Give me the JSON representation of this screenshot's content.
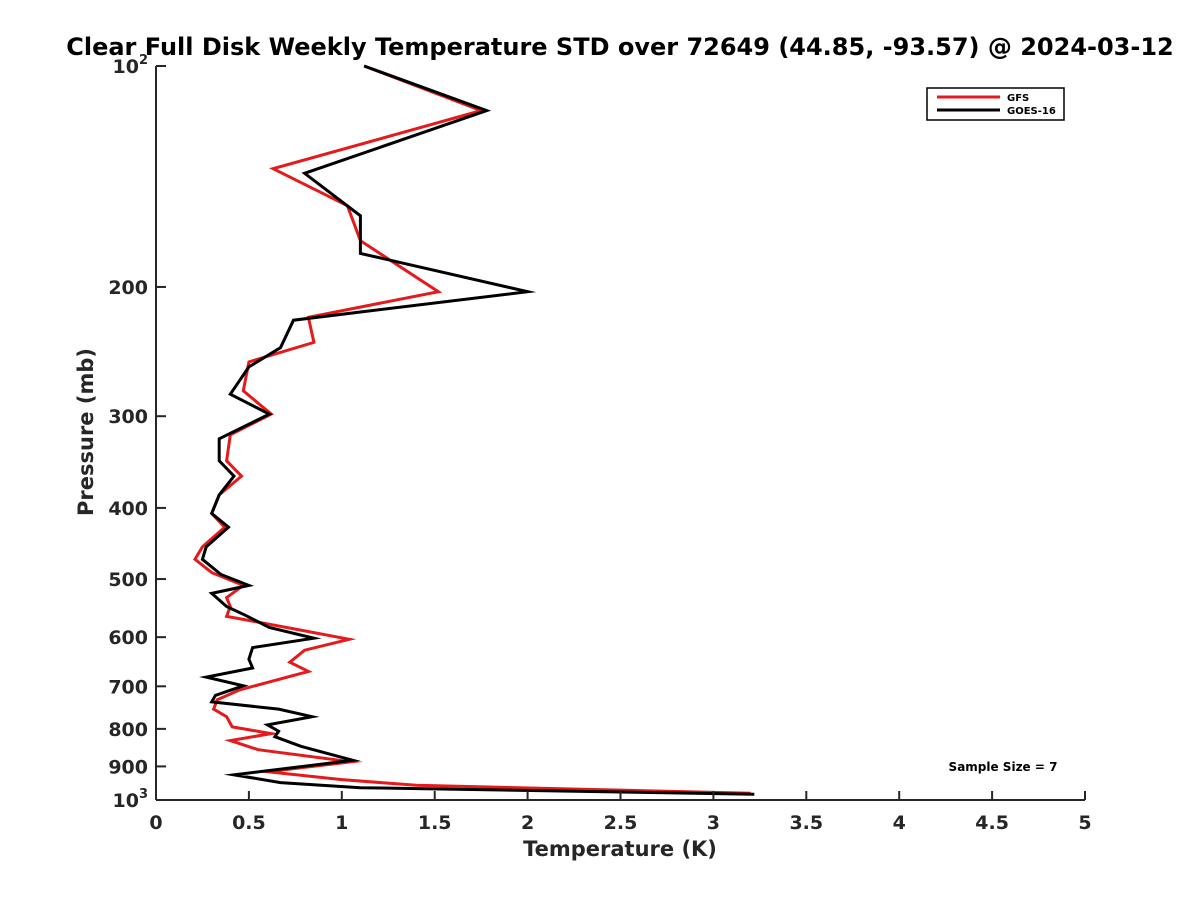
{
  "chart_data": {
    "type": "line",
    "title": "Clear Full Disk Weekly Temperature STD over 72649 (44.85, -93.57) @ 2024-03-12",
    "xlabel": "Temperature (K)",
    "ylabel": "Pressure (mb)",
    "xlim": [
      0,
      5
    ],
    "ylim": [
      100,
      1000
    ],
    "y_scale": "log",
    "y_reversed": true,
    "x_ticks": [
      "0",
      "0.5",
      "1",
      "1.5",
      "2",
      "2.5",
      "3",
      "3.5",
      "4",
      "4.5",
      "5"
    ],
    "y_ticks": [
      {
        "value": 100,
        "base": "10",
        "exp": "2"
      },
      {
        "value": 200,
        "label": "200"
      },
      {
        "value": 300,
        "label": "300"
      },
      {
        "value": 400,
        "label": "400"
      },
      {
        "value": 500,
        "label": "500"
      },
      {
        "value": 600,
        "label": "600"
      },
      {
        "value": 700,
        "label": "700"
      },
      {
        "value": 800,
        "label": "800"
      },
      {
        "value": 900,
        "label": "900"
      },
      {
        "value": 1000,
        "base": "10",
        "exp": "3"
      }
    ],
    "grid": false,
    "legend_position": "top-right",
    "annotation": "Sample Size = 7",
    "series": [
      {
        "name": "GFS",
        "color": "#e41a1c",
        "x": [
          1.12,
          1.75,
          0.63,
          1.03,
          1.1,
          1.52,
          0.82,
          0.85,
          0.5,
          0.47,
          0.62,
          0.4,
          0.38,
          0.46,
          0.34,
          0.3,
          0.37,
          0.25,
          0.21,
          0.3,
          0.47,
          0.38,
          0.4,
          0.38,
          0.75,
          1.04,
          0.8,
          0.72,
          0.82,
          0.45,
          0.33,
          0.31,
          0.38,
          0.41,
          0.62,
          0.4,
          0.55,
          1.05,
          0.6,
          1.0,
          1.4,
          3.2
        ],
        "y": [
          100,
          115,
          138,
          155,
          173,
          203,
          220,
          238,
          253,
          277,
          298,
          318,
          345,
          362,
          384,
          407,
          425,
          452,
          470,
          490,
          510,
          530,
          545,
          562,
          585,
          604,
          625,
          649,
          668,
          708,
          730,
          752,
          770,
          795,
          812,
          830,
          854,
          887,
          915,
          938,
          955,
          979
        ]
      },
      {
        "name": "GOES-16",
        "color": "#000000",
        "x": [
          1.12,
          1.78,
          0.8,
          1.1,
          1.1,
          2.0,
          0.74,
          0.67,
          0.5,
          0.4,
          0.61,
          0.34,
          0.34,
          0.42,
          0.34,
          0.3,
          0.39,
          0.27,
          0.25,
          0.35,
          0.5,
          0.3,
          0.38,
          0.48,
          0.61,
          0.85,
          0.52,
          0.5,
          0.52,
          0.27,
          0.47,
          0.32,
          0.3,
          0.66,
          0.84,
          0.6,
          0.66,
          0.64,
          0.78,
          1.06,
          0.42,
          0.67,
          1.1,
          3.22
        ],
        "y": [
          100,
          115,
          140,
          160,
          180,
          203,
          222,
          242,
          257,
          280,
          298,
          322,
          345,
          362,
          384,
          407,
          425,
          452,
          470,
          493,
          510,
          523,
          545,
          560,
          582,
          602,
          620,
          643,
          661,
          680,
          699,
          720,
          735,
          752,
          770,
          790,
          806,
          820,
          845,
          883,
          924,
          947,
          962,
          982
        ]
      }
    ]
  },
  "colors": {
    "axes": "#262626",
    "background": "#ffffff"
  }
}
